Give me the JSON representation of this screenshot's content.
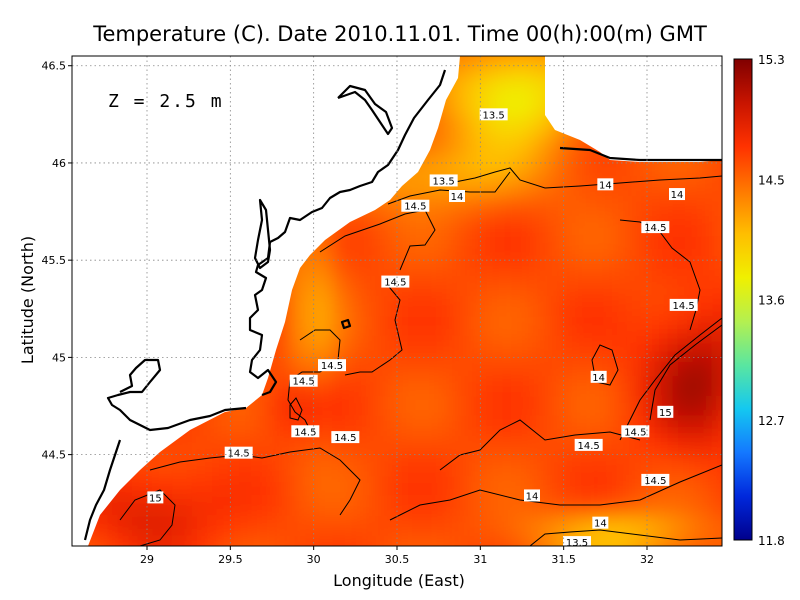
{
  "chart_data": {
    "type": "heatmap",
    "title": "Temperature (C). Date 2010.11.01. Time 00(h):00(m) GMT",
    "xlabel": "Longitude (East)",
    "ylabel": "Latitude (North)",
    "annotation": "Z  =  2.5  m",
    "xlim": [
      28.55,
      32.45
    ],
    "ylim": [
      44.03,
      46.55
    ],
    "xticks": [
      "29",
      "29.5",
      "30",
      "30.5",
      "31",
      "31.5",
      "32"
    ],
    "yticks": [
      "44.5",
      "45",
      "45.5",
      "46",
      "46.5"
    ],
    "grid": true,
    "colorbar": {
      "min": 11.8,
      "max": 15.3,
      "tick_labels": [
        "15.3",
        "14.5",
        "13.6",
        "12.7",
        "11.8"
      ],
      "colors": [
        "#800000",
        "#c81400",
        "#ff3200",
        "#ff7800",
        "#ffbe00",
        "#f0f000",
        "#b4f050",
        "#5ae6a0",
        "#14c8f0",
        "#1478ff",
        "#0028dc",
        "#00008c"
      ]
    },
    "contour_levels": [
      13.5,
      14,
      14.5,
      15
    ],
    "contour_labels": [
      {
        "text": "13.5",
        "lon": 31.08,
        "lat": 46.25
      },
      {
        "text": "13.5",
        "lon": 30.78,
        "lat": 45.91
      },
      {
        "text": "14",
        "lon": 30.86,
        "lat": 45.83
      },
      {
        "text": "14",
        "lon": 31.75,
        "lat": 45.89
      },
      {
        "text": "14",
        "lon": 32.18,
        "lat": 45.84
      },
      {
        "text": "14.5",
        "lon": 30.61,
        "lat": 45.78
      },
      {
        "text": "14.5",
        "lon": 32.05,
        "lat": 45.67
      },
      {
        "text": "14.5",
        "lon": 30.49,
        "lat": 45.39
      },
      {
        "text": "14.5",
        "lon": 32.22,
        "lat": 45.27
      },
      {
        "text": "14.5",
        "lon": 30.11,
        "lat": 44.96
      },
      {
        "text": "14.5",
        "lon": 29.94,
        "lat": 44.88
      },
      {
        "text": "14",
        "lon": 31.71,
        "lat": 44.9
      },
      {
        "text": "14.5",
        "lon": 29.95,
        "lat": 44.62
      },
      {
        "text": "14.5",
        "lon": 30.19,
        "lat": 44.59
      },
      {
        "text": "14.5",
        "lon": 29.55,
        "lat": 44.51
      },
      {
        "text": "14.5",
        "lon": 31.93,
        "lat": 44.62
      },
      {
        "text": "14.5",
        "lon": 31.65,
        "lat": 44.55
      },
      {
        "text": "15",
        "lon": 32.11,
        "lat": 44.72
      },
      {
        "text": "14.5",
        "lon": 32.05,
        "lat": 44.37
      },
      {
        "text": "15",
        "lon": 29.05,
        "lat": 44.28
      },
      {
        "text": "14",
        "lon": 31.31,
        "lat": 44.29
      },
      {
        "text": "14",
        "lon": 31.72,
        "lat": 44.15
      },
      {
        "text": "13.5",
        "lon": 31.58,
        "lat": 44.05
      }
    ]
  }
}
